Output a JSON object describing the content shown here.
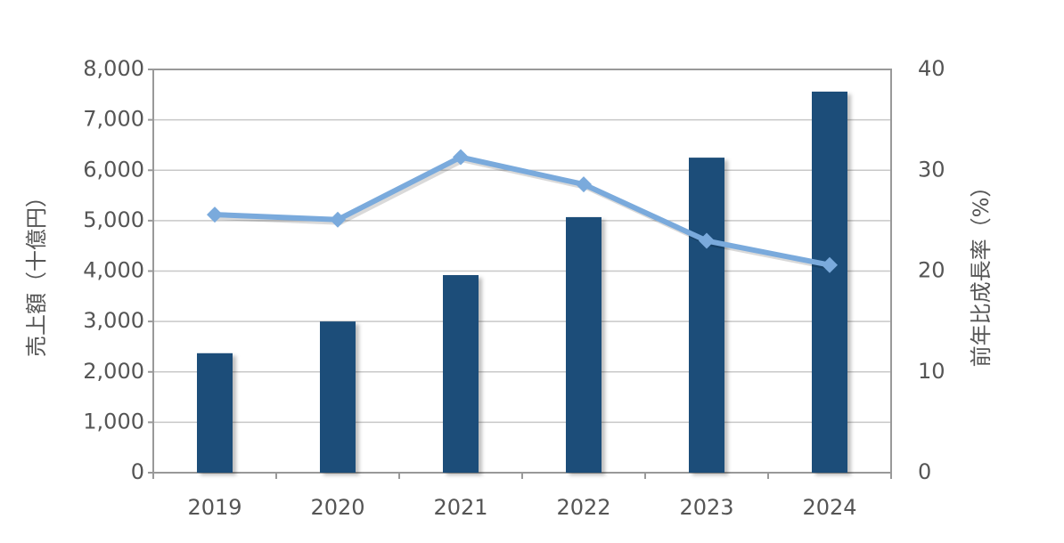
{
  "chart_data": {
    "type": "bar",
    "y_label": "売上額（十億円）",
    "y2_label": "前年比成長率（%）",
    "categories": [
      "2019",
      "2020",
      "2021",
      "2022",
      "2023",
      "2024"
    ],
    "series": [
      {
        "type": "bar",
        "color": "#1f4e79",
        "values": [
          2370,
          3000,
          3920,
          5070,
          6250,
          7560
        ]
      },
      {
        "type": "line",
        "color": "#7aaadc",
        "axis": "y2",
        "values": [
          25.6,
          25.1,
          31.3,
          28.6,
          23.0,
          20.6
        ]
      }
    ],
    "ylim": [
      0,
      8000
    ],
    "yticks": [
      0,
      {
        "value": 1000,
        "label": "1,000"
      },
      {
        "value": 2000,
        "label": "2,000"
      },
      {
        "value": 3000,
        "label": "3,000"
      },
      {
        "value": 4000,
        "label": "4,000"
      },
      {
        "value": 5000,
        "label": "5,000"
      },
      {
        "value": 6000,
        "label": "6,000"
      },
      {
        "value": 7000,
        "label": "7,000"
      },
      {
        "value": 8000,
        "label": "8,000"
      }
    ],
    "y2lim": [
      0,
      40
    ],
    "y2ticks": [
      0,
      10,
      20,
      30,
      40
    ],
    "grid": true
  }
}
